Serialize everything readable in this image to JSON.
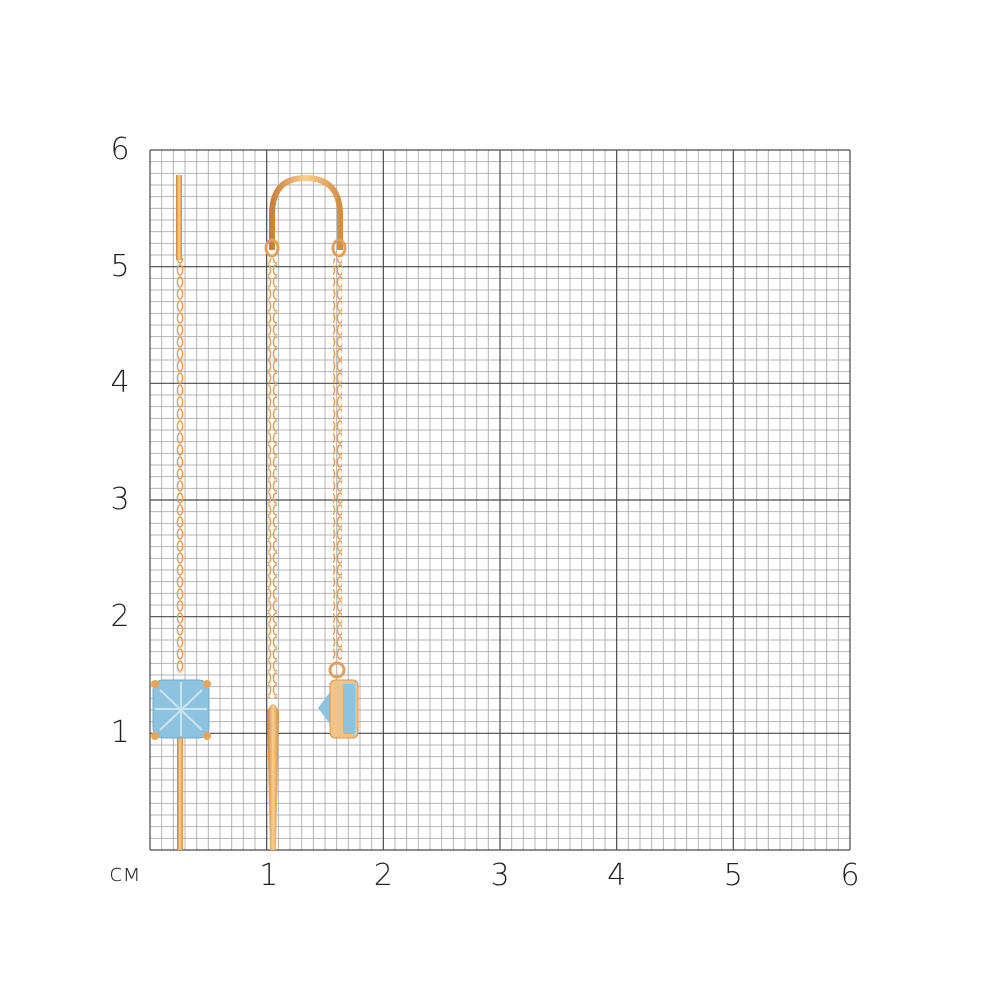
{
  "ruler": {
    "unit_label": "см",
    "y_ticks": [
      "1",
      "2",
      "3",
      "4",
      "5",
      "6"
    ],
    "x_ticks": [
      "1",
      "2",
      "3",
      "4",
      "5",
      "6"
    ],
    "range_cm": [
      0,
      6
    ],
    "minor_division_mm": 1
  },
  "colors": {
    "minor_grid": "#b4b4b4",
    "major_grid": "#4a4a4a",
    "gold": "#e8a55a",
    "gold_dark": "#c9803a",
    "topaz": "#8ec3e0"
  },
  "product": {
    "item": "threader earrings with blue topaz"
  }
}
